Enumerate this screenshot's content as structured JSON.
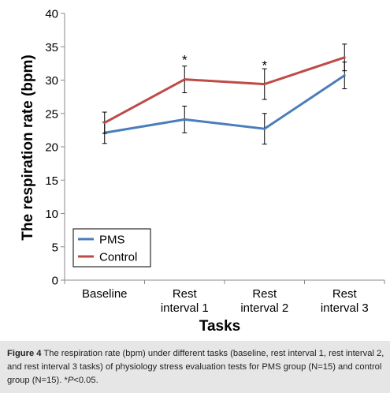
{
  "chart_data": {
    "type": "line",
    "categories": [
      [
        "Baseline"
      ],
      [
        "Rest",
        "interval 1"
      ],
      [
        "Rest",
        "interval 2"
      ],
      [
        "Rest",
        "interval 3"
      ]
    ],
    "series": [
      {
        "name": "PMS",
        "color": "#4a7ebb",
        "values": [
          22.1,
          24.1,
          22.7,
          30.7
        ],
        "errors": [
          1.6,
          2.0,
          2.3,
          2.0
        ]
      },
      {
        "name": "Control",
        "color": "#be4b48",
        "values": [
          23.6,
          30.1,
          29.4,
          33.4
        ],
        "errors": [
          1.6,
          2.0,
          2.3,
          2.0
        ]
      }
    ],
    "ylim": [
      0,
      40
    ],
    "yticks": [
      0,
      5,
      10,
      15,
      20,
      25,
      30,
      35,
      40
    ],
    "ylabel": "The respiration rate (bpm)",
    "xlabel": "Tasks",
    "annotations": [
      {
        "text": "*",
        "category_index": 1,
        "y": 33.3
      },
      {
        "text": "*",
        "category_index": 2,
        "y": 32.5
      }
    ],
    "legend_position": "bottom-left",
    "grid": false
  },
  "caption": {
    "label": "Figure 4",
    "text_1": " The respiration rate (bpm) under different tasks (baseline, rest interval 1, rest interval 2, and rest interval 3 tasks) of physiology stress evaluation tests for PMS group (N=15) and control group (N=15). *",
    "p_symbol": "P",
    "text_2": "<0.05."
  }
}
